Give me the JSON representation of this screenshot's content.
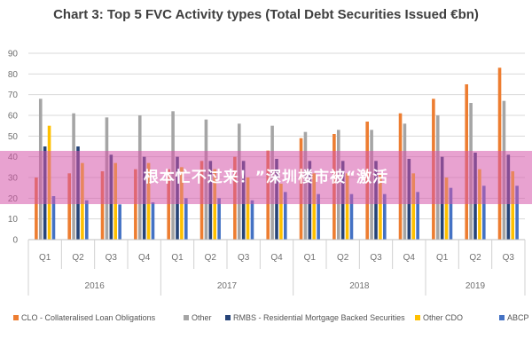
{
  "chart_data": {
    "type": "bar",
    "title": "Chart 3: Top 5 FVC Activity types (Total Debt Securities Issued €bn)",
    "xlabel": "",
    "ylabel": "",
    "ylim": [
      0,
      90
    ],
    "yticks": [
      "0",
      "10",
      "20",
      "30",
      "40",
      "50",
      "60",
      "70",
      "80",
      "90"
    ],
    "grid": true,
    "legend_position": "bottom",
    "categories": [
      "Q1",
      "Q2",
      "Q3",
      "Q4",
      "Q1",
      "Q2",
      "Q3",
      "Q4",
      "Q1",
      "Q2",
      "Q3",
      "Q4",
      "Q1",
      "Q2",
      "Q3"
    ],
    "groups": [
      {
        "label": "2016",
        "count": 4
      },
      {
        "label": "2017",
        "count": 4
      },
      {
        "label": "2018",
        "count": 4
      },
      {
        "label": "2019",
        "count": 3
      }
    ],
    "series": [
      {
        "name": "CLO - Collateralised Loan Obligations",
        "color": "#ed7d31",
        "values": [
          30,
          32,
          33,
          34,
          34,
          38,
          40,
          43,
          49,
          51,
          57,
          61,
          68,
          75,
          83
        ]
      },
      {
        "name": "Other",
        "color": "#a5a5a5",
        "values": [
          68,
          61,
          59,
          60,
          62,
          58,
          56,
          55,
          52,
          53,
          53,
          56,
          60,
          66,
          67
        ]
      },
      {
        "name": "RMBS - Residential Mortgage Backed Securities",
        "color": "#264478",
        "values": [
          45,
          45,
          41,
          40,
          40,
          38,
          38,
          39,
          38,
          38,
          38,
          39,
          40,
          42,
          41
        ]
      },
      {
        "name": "Other CDO",
        "color": "#ffc000",
        "values": [
          55,
          37,
          37,
          37,
          35,
          34,
          30,
          27,
          32,
          32,
          32,
          32,
          30,
          34,
          33
        ]
      },
      {
        "name": "ABCP",
        "color": "#4472c4",
        "values": [
          21,
          19,
          17,
          18,
          20,
          20,
          19,
          23,
          22,
          22,
          22,
          23,
          25,
          26,
          26
        ]
      }
    ]
  },
  "watermark": {
    "text": "根本忙不过来！”深圳楼市被“激活"
  }
}
